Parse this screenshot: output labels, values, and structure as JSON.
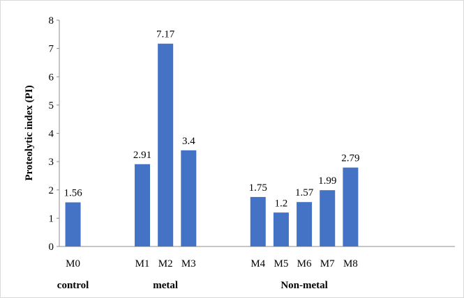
{
  "chart_data": {
    "type": "bar",
    "title": "",
    "xlabel": "",
    "ylabel": "Proteolytic index (PI)",
    "ylim": [
      0,
      8
    ],
    "yticks": [
      "0",
      "1",
      "2",
      "3",
      "4",
      "5",
      "6",
      "7",
      "8"
    ],
    "grid": false,
    "legend": "none",
    "bar_color": "#4472C4",
    "categories": [
      "M0",
      "M1",
      "M2",
      "M3",
      "M4",
      "M5",
      "M6",
      "M7",
      "M8"
    ],
    "values": [
      1.56,
      2.91,
      7.17,
      3.4,
      1.75,
      1.2,
      1.57,
      1.99,
      2.79
    ],
    "data_labels": [
      "1.56",
      "2.91",
      "7.17",
      "3.4",
      "1.75",
      "1.2",
      "1.57",
      "1.99",
      "2.79"
    ],
    "groups": [
      {
        "label": "control",
        "members": [
          "M0"
        ]
      },
      {
        "label": "metal",
        "members": [
          "M1",
          "M2",
          "M3"
        ]
      },
      {
        "label": "Non-metal",
        "members": [
          "M4",
          "M5",
          "M6",
          "M7",
          "M8"
        ]
      }
    ]
  }
}
